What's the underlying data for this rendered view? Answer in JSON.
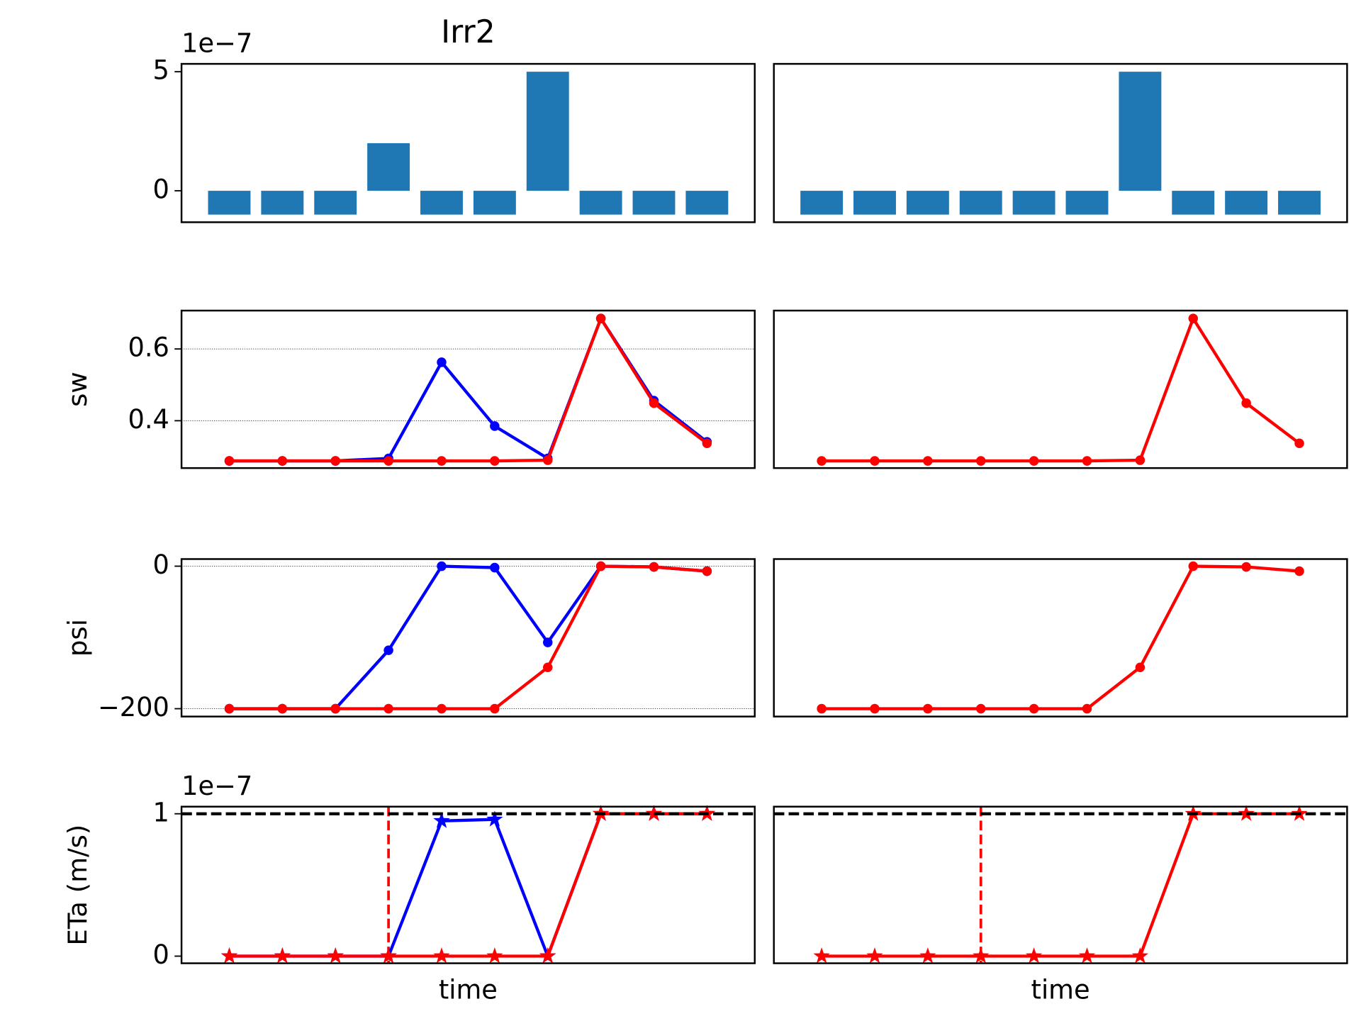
{
  "chart_data": [
    {
      "type": "bar",
      "title": "Irr2",
      "offset_text": "1e−7",
      "x": [
        0,
        1,
        2,
        3,
        4,
        5,
        6,
        7,
        8,
        9
      ],
      "xlim": [
        -0.9,
        9.9
      ],
      "values": [
        -1,
        -1,
        -1,
        2,
        -1,
        -1,
        5,
        -1,
        -1,
        -1
      ],
      "color": "#1f77b4",
      "ylim": [
        -1.32,
        5.33
      ],
      "yticks": [
        0,
        5
      ],
      "grid": false
    },
    {
      "type": "bar",
      "x": [
        0,
        1,
        2,
        3,
        4,
        5,
        6,
        7,
        8,
        9
      ],
      "xlim": [
        -0.9,
        9.9
      ],
      "values": [
        -1,
        -1,
        -1,
        -1,
        -1,
        -1,
        5,
        -1,
        -1,
        -1
      ],
      "color": "#1f77b4",
      "ylim": [
        -1.32,
        5.33
      ],
      "grid": false
    },
    {
      "type": "line",
      "ylabel": "sw",
      "x": [
        0,
        1,
        2,
        3,
        4,
        5,
        6,
        7,
        8,
        9
      ],
      "xlim": [
        -0.9,
        9.9
      ],
      "ylim": [
        0.268,
        0.707
      ],
      "yticks": [
        0.4,
        0.6
      ],
      "grid": true,
      "series": [
        {
          "color": "#0000ff",
          "marker": "circle",
          "values": [
            0.288,
            0.288,
            0.288,
            0.295,
            0.563,
            0.385,
            0.295,
            0.685,
            0.456,
            0.341
          ]
        },
        {
          "color": "#ff0000",
          "marker": "circle",
          "values": [
            0.288,
            0.288,
            0.288,
            0.288,
            0.288,
            0.288,
            0.29,
            0.685,
            0.449,
            0.337
          ]
        }
      ]
    },
    {
      "type": "line",
      "x": [
        0,
        1,
        2,
        3,
        4,
        5,
        6,
        7,
        8,
        9
      ],
      "xlim": [
        -0.9,
        9.9
      ],
      "ylim": [
        0.268,
        0.707
      ],
      "grid": false,
      "series": [
        {
          "color": "#ff0000",
          "marker": "circle",
          "values": [
            0.288,
            0.288,
            0.288,
            0.288,
            0.288,
            0.288,
            0.29,
            0.685,
            0.449,
            0.337
          ]
        }
      ]
    },
    {
      "type": "line",
      "ylabel": "psi",
      "x": [
        0,
        1,
        2,
        3,
        4,
        5,
        6,
        7,
        8,
        9
      ],
      "xlim": [
        -0.9,
        9.9
      ],
      "ylim": [
        -211,
        10
      ],
      "yticks": [
        {
          "value": -200,
          "label": "−200"
        },
        0
      ],
      "grid": true,
      "series": [
        {
          "color": "#0000ff",
          "marker": "circle",
          "values": [
            -200,
            -200,
            -200,
            -118,
            0,
            -2,
            -107,
            0,
            -1,
            -7
          ]
        },
        {
          "color": "#ff0000",
          "marker": "circle",
          "values": [
            -200,
            -200,
            -200,
            -200,
            -200,
            -200,
            -142,
            0,
            -1,
            -7
          ]
        }
      ]
    },
    {
      "type": "line",
      "x": [
        0,
        1,
        2,
        3,
        4,
        5,
        6,
        7,
        8,
        9
      ],
      "xlim": [
        -0.9,
        9.9
      ],
      "ylim": [
        -211,
        10
      ],
      "grid": false,
      "series": [
        {
          "color": "#ff0000",
          "marker": "circle",
          "values": [
            -200,
            -200,
            -200,
            -200,
            -200,
            -200,
            -142,
            0,
            -1,
            -7
          ]
        }
      ]
    },
    {
      "type": "line",
      "ylabel": "ETa (m/s)",
      "xlabel": "time",
      "offset_text": "1e−7",
      "x": [
        0,
        1,
        2,
        3,
        4,
        5,
        6,
        7,
        8,
        9
      ],
      "xlim": [
        -0.9,
        9.9
      ],
      "ylim": [
        -0.05,
        1.05
      ],
      "yticks": [
        0,
        1
      ],
      "grid": false,
      "axhline": 1,
      "axhline_color": "#000000",
      "axvline": 3,
      "axvline_color": "#ff0000",
      "series": [
        {
          "color": "#0000ff",
          "marker": "star",
          "values": [
            0,
            0,
            0,
            0,
            0.95,
            0.96,
            0,
            1,
            1,
            1
          ]
        },
        {
          "color": "#ff0000",
          "marker": "star",
          "values": [
            0,
            0,
            0,
            0,
            0,
            0,
            0,
            1,
            1,
            1
          ]
        }
      ]
    },
    {
      "type": "line",
      "xlabel": "time",
      "x": [
        0,
        1,
        2,
        3,
        4,
        5,
        6,
        7,
        8,
        9
      ],
      "xlim": [
        -0.9,
        9.9
      ],
      "ylim": [
        -0.05,
        1.05
      ],
      "grid": false,
      "axhline": 1,
      "axhline_color": "#000000",
      "axvline": 3,
      "axvline_color": "#ff0000",
      "series": [
        {
          "color": "#ff0000",
          "marker": "star",
          "values": [
            0,
            0,
            0,
            0,
            0,
            0,
            0,
            1,
            1,
            1
          ]
        }
      ]
    }
  ]
}
